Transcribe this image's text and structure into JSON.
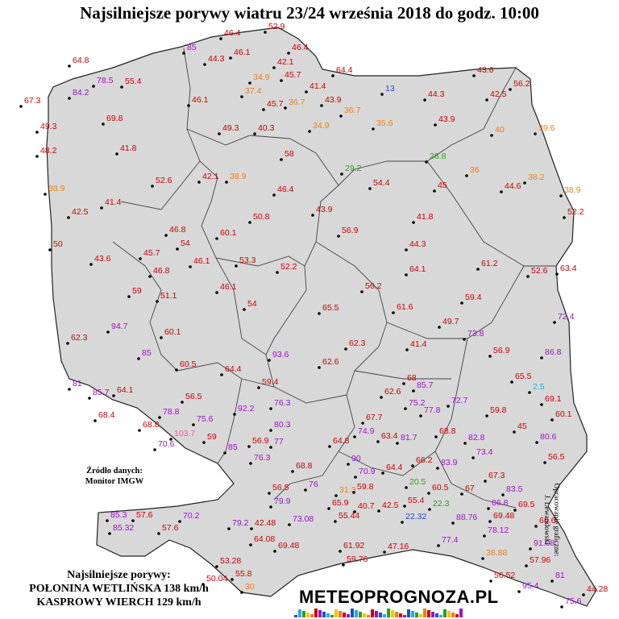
{
  "title": "Najsilniejsze porywy wiatru 23/24 września 2018 do godz. 10:00",
  "source_line1": "Źródło danych:",
  "source_line2": "Monitor IMGW",
  "author_line1": "Opracowanie graficzne:",
  "author_line2": "J. Lewandowski",
  "strongest_header": "Najsilniejsze porywy:",
  "strongest_1": "POŁONINA WETLIŃSKA 138 km/h",
  "strongest_2": "KASPROWY WIERCH 129 km/h",
  "logo_prefix": "ME",
  "logo_text": "TEOPROGNOZA.PL",
  "colors": {
    "red": "#cc0000",
    "orange": "#f07f16",
    "purple": "#9b12c9",
    "blue": "#1f4fc0",
    "green": "#2e9e1d",
    "light_blue": "#2ba8e8",
    "pink": "#ff4fb0",
    "land": "#d8d8d8",
    "border": "#222222"
  },
  "stations": [
    {
      "v": "52.9",
      "c": "red"
    },
    {
      "v": "46.4",
      "c": "red"
    },
    {
      "v": "46.4",
      "c": "red"
    },
    {
      "v": "85",
      "c": "purple"
    },
    {
      "v": "44.3",
      "c": "red"
    },
    {
      "v": "46.1",
      "c": "red"
    },
    {
      "v": "64.8",
      "c": "red"
    },
    {
      "v": "42.1",
      "c": "red"
    },
    {
      "v": "45.7",
      "c": "red"
    },
    {
      "v": "64.4",
      "c": "red"
    },
    {
      "v": "43.6",
      "c": "red"
    },
    {
      "v": "78.5",
      "c": "purple"
    },
    {
      "v": "55.4",
      "c": "red"
    },
    {
      "v": "34.9",
      "c": "orange"
    },
    {
      "v": "37.4",
      "c": "orange"
    },
    {
      "v": "41.4",
      "c": "red"
    },
    {
      "v": "13",
      "c": "blue"
    },
    {
      "v": "56.2",
      "c": "red"
    },
    {
      "v": "67.3",
      "c": "red"
    },
    {
      "v": "84.2",
      "c": "purple"
    },
    {
      "v": "46.1",
      "c": "red"
    },
    {
      "v": "45.7",
      "c": "red"
    },
    {
      "v": "36.7",
      "c": "orange"
    },
    {
      "v": "43.9",
      "c": "red"
    },
    {
      "v": "44.3",
      "c": "red"
    },
    {
      "v": "42.5",
      "c": "red"
    },
    {
      "v": "36.7",
      "c": "orange"
    },
    {
      "v": "69.8",
      "c": "red"
    },
    {
      "v": "49.3",
      "c": "red"
    },
    {
      "v": "49.3",
      "c": "red"
    },
    {
      "v": "40.3",
      "c": "red"
    },
    {
      "v": "34.9",
      "c": "orange"
    },
    {
      "v": "35.6",
      "c": "orange"
    },
    {
      "v": "43.9",
      "c": "red"
    },
    {
      "v": "40",
      "c": "orange"
    },
    {
      "v": "39.6",
      "c": "orange"
    },
    {
      "v": "48.2",
      "c": "red"
    },
    {
      "v": "41.8",
      "c": "red"
    },
    {
      "v": "58",
      "c": "red"
    },
    {
      "v": "28.8",
      "c": "green"
    },
    {
      "v": "29.2",
      "c": "green"
    },
    {
      "v": "36",
      "c": "orange"
    },
    {
      "v": "38.2",
      "c": "orange"
    },
    {
      "v": "38.9",
      "c": "orange"
    },
    {
      "v": "52.6",
      "c": "red"
    },
    {
      "v": "42.1",
      "c": "red"
    },
    {
      "v": "38.9",
      "c": "orange"
    },
    {
      "v": "46.4",
      "c": "red"
    },
    {
      "v": "54.4",
      "c": "red"
    },
    {
      "v": "45",
      "c": "red"
    },
    {
      "v": "44.6",
      "c": "red"
    },
    {
      "v": "38.9",
      "c": "orange"
    },
    {
      "v": "41.4",
      "c": "red"
    },
    {
      "v": "43.9",
      "c": "red"
    },
    {
      "v": "52.2",
      "c": "red"
    },
    {
      "v": "42.5",
      "c": "red"
    },
    {
      "v": "50.8",
      "c": "red"
    },
    {
      "v": "41.8",
      "c": "red"
    },
    {
      "v": "56.9",
      "c": "red"
    },
    {
      "v": "46.8",
      "c": "red"
    },
    {
      "v": "60.1",
      "c": "red"
    },
    {
      "v": "50",
      "c": "red"
    },
    {
      "v": "54",
      "c": "red"
    },
    {
      "v": "44.3",
      "c": "red"
    },
    {
      "v": "45.7",
      "c": "red"
    },
    {
      "v": "53.3",
      "c": "red"
    },
    {
      "v": "43.6",
      "c": "red"
    },
    {
      "v": "46.1",
      "c": "red"
    },
    {
      "v": "52.2",
      "c": "red"
    },
    {
      "v": "64.1",
      "c": "red"
    },
    {
      "v": "61.2",
      "c": "red"
    },
    {
      "v": "52.6",
      "c": "red"
    },
    {
      "v": "63.4",
      "c": "red"
    },
    {
      "v": "46.8",
      "c": "red"
    },
    {
      "v": "46.1",
      "c": "red"
    },
    {
      "v": "56.2",
      "c": "red"
    },
    {
      "v": "59",
      "c": "red"
    },
    {
      "v": "51.1",
      "c": "red"
    },
    {
      "v": "54",
      "c": "red"
    },
    {
      "v": "65.5",
      "c": "red"
    },
    {
      "v": "61.6",
      "c": "red"
    },
    {
      "v": "59.4",
      "c": "red"
    },
    {
      "v": "72.4",
      "c": "purple"
    },
    {
      "v": "94.7",
      "c": "purple"
    },
    {
      "v": "60.1",
      "c": "red"
    },
    {
      "v": "49.7",
      "c": "red"
    },
    {
      "v": "73.8",
      "c": "purple"
    },
    {
      "v": "62.3",
      "c": "red"
    },
    {
      "v": "41.4",
      "c": "red"
    },
    {
      "v": "56.9",
      "c": "red"
    },
    {
      "v": "86.8",
      "c": "purple"
    },
    {
      "v": "62.3",
      "c": "red"
    },
    {
      "v": "85",
      "c": "purple"
    },
    {
      "v": "93.6",
      "c": "purple"
    },
    {
      "v": "62.6",
      "c": "red"
    },
    {
      "v": "64.4",
      "c": "red"
    },
    {
      "v": "60.5",
      "c": "red"
    },
    {
      "v": "68",
      "c": "red"
    },
    {
      "v": "62.6",
      "c": "red"
    },
    {
      "v": "81",
      "c": "purple"
    },
    {
      "v": "85.7",
      "c": "purple"
    },
    {
      "v": "64.1",
      "c": "red"
    },
    {
      "v": "59.4",
      "c": "red"
    },
    {
      "v": "65.5",
      "c": "red"
    },
    {
      "v": "56.5",
      "c": "red"
    },
    {
      "v": "85.7",
      "c": "purple"
    },
    {
      "v": "2.5",
      "c": "light_blue"
    },
    {
      "v": "75.2",
      "c": "purple"
    },
    {
      "v": "72.7",
      "c": "purple"
    },
    {
      "v": "69.1",
      "c": "red"
    },
    {
      "v": "78.8",
      "c": "purple"
    },
    {
      "v": "68.4",
      "c": "red"
    },
    {
      "v": "75.6",
      "c": "purple"
    },
    {
      "v": "92.2",
      "c": "purple"
    },
    {
      "v": "77.8",
      "c": "purple"
    },
    {
      "v": "59.8",
      "c": "red"
    },
    {
      "v": "60.1",
      "c": "red"
    },
    {
      "v": "67.7",
      "c": "red"
    },
    {
      "v": "76.3",
      "c": "purple"
    },
    {
      "v": "45",
      "c": "red"
    },
    {
      "v": "103.7",
      "c": "pink"
    },
    {
      "v": "68.8",
      "c": "red"
    },
    {
      "v": "74.9",
      "c": "purple"
    },
    {
      "v": "80.3",
      "c": "purple"
    },
    {
      "v": "59",
      "c": "red"
    },
    {
      "v": "63.4",
      "c": "red"
    },
    {
      "v": "68.8",
      "c": "red"
    },
    {
      "v": "82.8",
      "c": "purple"
    },
    {
      "v": "80.6",
      "c": "purple"
    },
    {
      "v": "70.6",
      "c": "purple"
    },
    {
      "v": "85",
      "c": "purple"
    },
    {
      "v": "56.9",
      "c": "red"
    },
    {
      "v": "77",
      "c": "purple"
    },
    {
      "v": "64.8",
      "c": "red"
    },
    {
      "v": "81.7",
      "c": "purple"
    },
    {
      "v": "73.4",
      "c": "purple"
    },
    {
      "v": "76.3",
      "c": "purple"
    },
    {
      "v": "90",
      "c": "purple"
    },
    {
      "v": "83.9",
      "c": "purple"
    },
    {
      "v": "56.5",
      "c": "red"
    },
    {
      "v": "68.8",
      "c": "red"
    },
    {
      "v": "70.9",
      "c": "purple"
    },
    {
      "v": "64.4",
      "c": "red"
    },
    {
      "v": "66.2",
      "c": "red"
    },
    {
      "v": "67.3",
      "c": "red"
    },
    {
      "v": "56.5",
      "c": "red"
    },
    {
      "v": "76",
      "c": "purple"
    },
    {
      "v": "31.3",
      "c": "orange"
    },
    {
      "v": "59.8",
      "c": "red"
    },
    {
      "v": "20.5",
      "c": "green"
    },
    {
      "v": "60.5",
      "c": "red"
    },
    {
      "v": "67",
      "c": "red"
    },
    {
      "v": "83.5",
      "c": "purple"
    },
    {
      "v": "79.9",
      "c": "purple"
    },
    {
      "v": "65.9",
      "c": "red"
    },
    {
      "v": "40.7",
      "c": "red"
    },
    {
      "v": "42.5",
      "c": "red"
    },
    {
      "v": "55.4",
      "c": "red"
    },
    {
      "v": "22.3",
      "c": "green"
    },
    {
      "v": "86.8",
      "c": "purple"
    },
    {
      "v": "69.5",
      "c": "red"
    },
    {
      "v": "85.3",
      "c": "purple"
    },
    {
      "v": "57.6",
      "c": "red"
    },
    {
      "v": "70.2",
      "c": "purple"
    },
    {
      "v": "79.2",
      "c": "purple"
    },
    {
      "v": "42.48",
      "c": "red"
    },
    {
      "v": "73.08",
      "c": "purple"
    },
    {
      "v": "55.44",
      "c": "red"
    },
    {
      "v": "22.32",
      "c": "blue"
    },
    {
      "v": "88.76",
      "c": "purple"
    },
    {
      "v": "69.48",
      "c": "red"
    },
    {
      "v": "66.6",
      "c": "red"
    },
    {
      "v": "85.32",
      "c": "purple"
    },
    {
      "v": "57.6",
      "c": "red"
    },
    {
      "v": "78.12",
      "c": "purple"
    },
    {
      "v": "64.08",
      "c": "red"
    },
    {
      "v": "91.08",
      "c": "purple"
    },
    {
      "v": "69.48",
      "c": "red"
    },
    {
      "v": "61.92",
      "c": "red"
    },
    {
      "v": "47.16",
      "c": "red"
    },
    {
      "v": "77.4",
      "c": "purple"
    },
    {
      "v": "38.88",
      "c": "orange"
    },
    {
      "v": "59.76",
      "c": "red"
    },
    {
      "v": "57.96",
      "c": "red"
    },
    {
      "v": "53.28",
      "c": "red"
    },
    {
      "v": "55.8",
      "c": "red"
    },
    {
      "v": "56.52",
      "c": "red"
    },
    {
      "v": "81",
      "c": "purple"
    },
    {
      "v": "50.04",
      "c": "red"
    },
    {
      "v": "95.4",
      "c": "purple"
    },
    {
      "v": "30",
      "c": "orange"
    },
    {
      "v": "44.28",
      "c": "red"
    },
    {
      "v": "75.6",
      "c": "purple"
    },
    {
      "v": "44.64",
      "c": "red"
    },
    {
      "v": "58.32",
      "c": "red"
    }
  ]
}
